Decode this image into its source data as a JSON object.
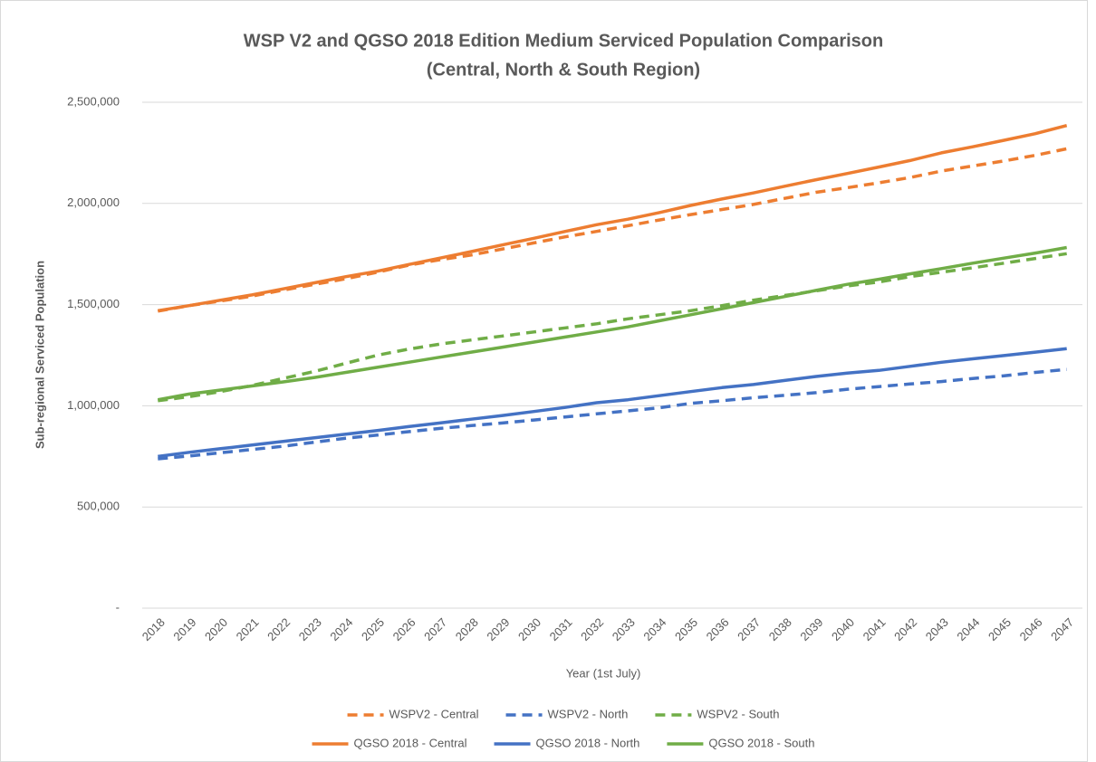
{
  "chart_data": {
    "type": "line",
    "title": [
      "WSP V2 and QGSO 2018 Edition Medium Serviced Population Comparison",
      "(Central, North & South Region)"
    ],
    "xlabel": "Year (1st July)",
    "ylabel": "Sub-regional Serviced Population",
    "categories": [
      "2018",
      "2019",
      "2020",
      "2021",
      "2022",
      "2023",
      "2024",
      "2025",
      "2026",
      "2027",
      "2028",
      "2029",
      "2030",
      "2031",
      "2032",
      "2033",
      "2034",
      "2035",
      "2036",
      "2037",
      "2038",
      "2039",
      "2040",
      "2041",
      "2042",
      "2043",
      "2044",
      "2045",
      "2046",
      "2047"
    ],
    "ylim": [
      0,
      2500000
    ],
    "yticks": [
      {
        "value": 0,
        "label": "-"
      },
      {
        "value": 500000,
        "label": "500,000"
      },
      {
        "value": 1000000,
        "label": "1,000,000"
      },
      {
        "value": 1500000,
        "label": "1,500,000"
      },
      {
        "value": 2000000,
        "label": "2,000,000"
      },
      {
        "value": 2500000,
        "label": "2,500,000"
      }
    ],
    "grid": true,
    "legend": "bottom",
    "series": [
      {
        "name": "WSPV2 - Central",
        "color": "#ed7d31",
        "dashed": true,
        "values": [
          1468000,
          1495000,
          1518000,
          1542000,
          1572000,
          1600000,
          1628000,
          1660000,
          1695000,
          1722000,
          1745000,
          1775000,
          1805000,
          1835000,
          1862000,
          1890000,
          1918000,
          1945000,
          1970000,
          1995000,
          2025000,
          2055000,
          2078000,
          2102000,
          2128000,
          2160000,
          2185000,
          2210000,
          2238000,
          2270000
        ]
      },
      {
        "name": "WSPV2 - North",
        "color": "#4472c4",
        "dashed": true,
        "values": [
          738000,
          752000,
          768000,
          784000,
          800000,
          820000,
          840000,
          855000,
          872000,
          888000,
          902000,
          915000,
          930000,
          945000,
          960000,
          975000,
          990000,
          1012000,
          1025000,
          1040000,
          1052000,
          1065000,
          1082000,
          1095000,
          1108000,
          1120000,
          1135000,
          1148000,
          1165000,
          1180000
        ]
      },
      {
        "name": "WSPV2 - South",
        "color": "#70ad47",
        "dashed": true,
        "values": [
          1025000,
          1045000,
          1070000,
          1100000,
          1135000,
          1170000,
          1210000,
          1250000,
          1280000,
          1305000,
          1325000,
          1345000,
          1365000,
          1385000,
          1405000,
          1430000,
          1450000,
          1470000,
          1495000,
          1522000,
          1545000,
          1568000,
          1592000,
          1612000,
          1638000,
          1660000,
          1682000,
          1705000,
          1728000,
          1752000
        ]
      },
      {
        "name": "QGSO 2018 - Central",
        "color": "#ed7d31",
        "dashed": false,
        "values": [
          1470000,
          1495000,
          1522000,
          1548000,
          1578000,
          1608000,
          1638000,
          1665000,
          1698000,
          1730000,
          1762000,
          1795000,
          1828000,
          1862000,
          1895000,
          1922000,
          1955000,
          1990000,
          2022000,
          2052000,
          2085000,
          2117000,
          2148000,
          2180000,
          2212000,
          2250000,
          2280000,
          2312000,
          2345000,
          2385000
        ]
      },
      {
        "name": "QGSO 2018 - North",
        "color": "#4472c4",
        "dashed": false,
        "values": [
          750000,
          770000,
          788000,
          806000,
          824000,
          842000,
          860000,
          878000,
          897000,
          915000,
          934000,
          952000,
          972000,
          992000,
          1015000,
          1030000,
          1050000,
          1070000,
          1090000,
          1105000,
          1125000,
          1145000,
          1162000,
          1175000,
          1195000,
          1215000,
          1232000,
          1248000,
          1265000,
          1282000
        ]
      },
      {
        "name": "QGSO 2018 - South",
        "color": "#70ad47",
        "dashed": false,
        "values": [
          1030000,
          1058000,
          1078000,
          1098000,
          1118000,
          1140000,
          1165000,
          1190000,
          1215000,
          1240000,
          1265000,
          1290000,
          1315000,
          1340000,
          1365000,
          1390000,
          1420000,
          1450000,
          1480000,
          1510000,
          1540000,
          1570000,
          1600000,
          1625000,
          1652000,
          1678000,
          1705000,
          1730000,
          1755000,
          1782000
        ]
      }
    ]
  }
}
